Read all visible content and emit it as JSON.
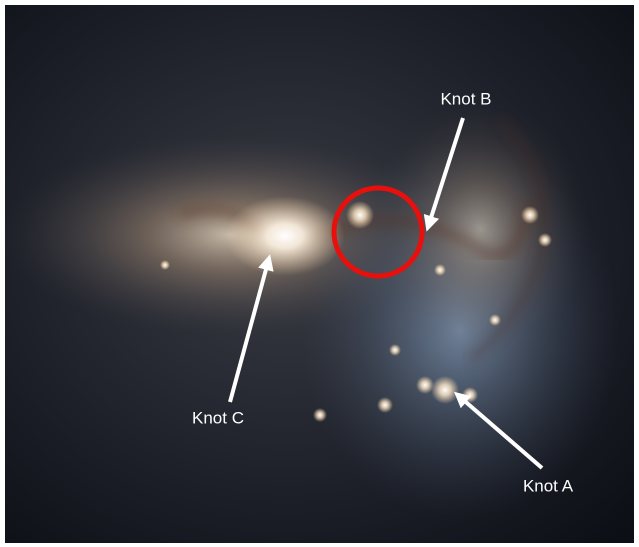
{
  "annotations": [
    {
      "label": "Knot B"
    },
    {
      "label": "Knot C"
    },
    {
      "label": "Knot A"
    }
  ]
}
